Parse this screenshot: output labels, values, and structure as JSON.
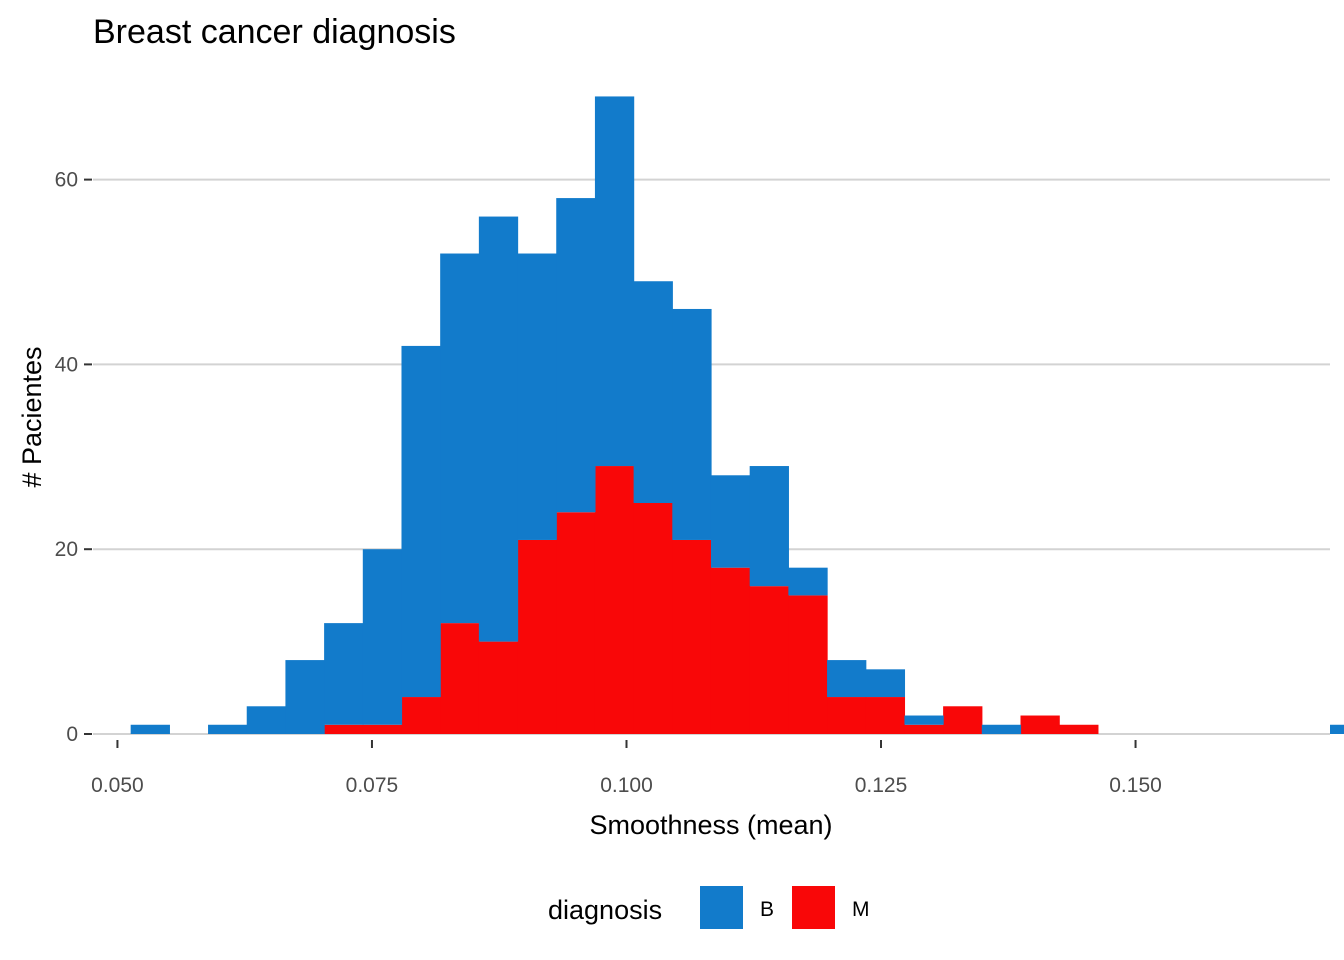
{
  "chart_data": {
    "type": "bar",
    "subtype": "stacked histogram",
    "title": "Breast cancer diagnosis",
    "xlabel": "Smoothness (mean)",
    "ylabel": "# Pacientes",
    "xlim": [
      0.0476,
      0.1691
    ],
    "ylim": [
      0,
      69
    ],
    "x_ticks": [
      {
        "value": 0.05,
        "label": "0.050"
      },
      {
        "value": 0.075,
        "label": "0.075"
      },
      {
        "value": 0.1,
        "label": "0.100"
      },
      {
        "value": 0.125,
        "label": "0.125"
      },
      {
        "value": 0.15,
        "label": "0.150"
      }
    ],
    "y_ticks": [
      {
        "value": 0,
        "label": "0"
      },
      {
        "value": 20,
        "label": "20"
      },
      {
        "value": 40,
        "label": "40"
      },
      {
        "value": 60,
        "label": "60"
      }
    ],
    "grid": "horizontal major gridlines",
    "legend": {
      "position": "bottom",
      "title": "diagnosis",
      "entries": [
        {
          "label": "B",
          "color": "#127bcb"
        },
        {
          "label": "M",
          "color": "#f90708"
        }
      ]
    },
    "bins": {
      "x_start": 0.0513,
      "width": 0.0038,
      "count": 32
    },
    "series": [
      {
        "name": "M",
        "color": "#f90708",
        "values": [
          0,
          0,
          0,
          0,
          0,
          1,
          1,
          4,
          12,
          10,
          21,
          24,
          29,
          25,
          21,
          18,
          16,
          15,
          4,
          4,
          1,
          3,
          0,
          2,
          1,
          0,
          0,
          0,
          0,
          0,
          0,
          0
        ]
      },
      {
        "name": "B",
        "color": "#127bcb",
        "values": [
          1,
          0,
          1,
          3,
          8,
          11,
          19,
          38,
          40,
          46,
          31,
          34,
          40,
          24,
          25,
          10,
          13,
          3,
          4,
          3,
          1,
          0,
          1,
          0,
          0,
          0,
          0,
          0,
          0,
          0,
          0,
          1
        ]
      }
    ],
    "totals": [
      1,
      0,
      1,
      3,
      8,
      12,
      20,
      42,
      52,
      56,
      52,
      58,
      69,
      49,
      46,
      28,
      29,
      18,
      8,
      7,
      2,
      3,
      1,
      2,
      1,
      0,
      0,
      0,
      0,
      0,
      0,
      1
    ]
  }
}
